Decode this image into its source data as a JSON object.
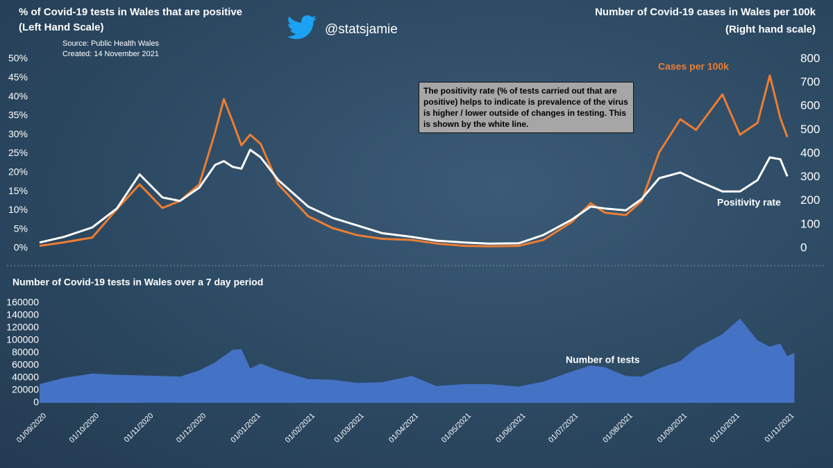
{
  "header": {
    "handle": "@statsjamie",
    "source": "Source: Public Health Wales",
    "created": "Created: 14 November 2021"
  },
  "chart_data": [
    {
      "type": "line",
      "title": "% of Covid-19 tests in Wales that are positive",
      "ylabel": "(Left Hand Scale)",
      "y2title": "Number of Covid-19 cases in Wales per 100k",
      "y2label": "(Right hand scale)",
      "annotation": "The positivity rate (% of tests carried out that are positive) helps to indicate is prevalence of the virus is higher / lower outside of changes in testing. This is shown by the white line.",
      "xlim": [
        "01/09/2020",
        "10/11/2021"
      ],
      "x": [
        "01/09/2020",
        "15/09/2020",
        "01/10/2020",
        "15/10/2020",
        "28/10/2020",
        "10/11/2020",
        "20/11/2020",
        "01/12/2020",
        "10/12/2020",
        "15/12/2020",
        "20/12/2020",
        "25/12/2020",
        "30/12/2020",
        "05/01/2021",
        "15/01/2021",
        "01/02/2021",
        "15/02/2021",
        "01/03/2021",
        "15/03/2021",
        "01/04/2021",
        "15/04/2021",
        "01/05/2021",
        "15/05/2021",
        "01/06/2021",
        "15/06/2021",
        "01/07/2021",
        "12/07/2021",
        "20/07/2021",
        "01/08/2021",
        "10/08/2021",
        "20/08/2021",
        "01/09/2021",
        "10/09/2021",
        "25/09/2021",
        "05/10/2021",
        "15/10/2021",
        "22/10/2021",
        "28/10/2021",
        "01/11/2021"
      ],
      "ylim": [
        0,
        50
      ],
      "yticks": [
        {
          "value": 0,
          "label": "0%"
        },
        {
          "value": 5,
          "label": "5%"
        },
        {
          "value": 10,
          "label": "10%"
        },
        {
          "value": 15,
          "label": "15%"
        },
        {
          "value": 20,
          "label": "20%"
        },
        {
          "value": 25,
          "label": "25%"
        },
        {
          "value": 30,
          "label": "30%"
        },
        {
          "value": 35,
          "label": "35%"
        },
        {
          "value": 40,
          "label": "40%"
        },
        {
          "value": 45,
          "label": "45%"
        },
        {
          "value": 50,
          "label": "50%"
        }
      ],
      "y2lim": [
        0,
        800
      ],
      "y2ticks": [
        0,
        100,
        200,
        300,
        400,
        500,
        600,
        700,
        800
      ],
      "series": [
        {
          "name": "Cases per 100k",
          "color": "#ed7d31",
          "axis": "y2",
          "values": [
            10,
            25,
            45,
            165,
            270,
            170,
            200,
            270,
            490,
            630,
            535,
            435,
            480,
            440,
            270,
            135,
            85,
            55,
            40,
            35,
            20,
            10,
            8,
            10,
            35,
            110,
            190,
            150,
            140,
            200,
            405,
            545,
            500,
            650,
            480,
            530,
            730,
            550,
            470
          ]
        },
        {
          "name": "Positivity rate",
          "color": "#ffffff",
          "values": [
            1.5,
            3,
            5.5,
            10.5,
            19.5,
            13.4,
            12.5,
            16,
            22,
            23,
            21.5,
            21,
            26,
            24,
            18,
            11,
            8,
            6,
            4,
            3,
            2,
            1.5,
            1.2,
            1.3,
            3.5,
            7.5,
            11,
            10.5,
            10,
            13,
            18.5,
            20,
            18,
            15,
            15,
            18,
            24,
            23.5,
            19
          ]
        }
      ]
    },
    {
      "type": "area",
      "title": "Number of Covid-19 tests in Wales over a 7 day period",
      "xlim": [
        "01/09/2020",
        "10/11/2021"
      ],
      "x": [
        "01/09/2020",
        "15/09/2020",
        "01/10/2020",
        "15/10/2020",
        "28/10/2020",
        "10/11/2020",
        "20/11/2020",
        "01/12/2020",
        "10/12/2020",
        "15/12/2020",
        "20/12/2020",
        "25/12/2020",
        "30/12/2020",
        "05/01/2021",
        "15/01/2021",
        "01/02/2021",
        "15/02/2021",
        "01/03/2021",
        "15/03/2021",
        "01/04/2021",
        "15/04/2021",
        "01/05/2021",
        "15/05/2021",
        "01/06/2021",
        "15/06/2021",
        "01/07/2021",
        "12/07/2021",
        "20/07/2021",
        "01/08/2021",
        "10/08/2021",
        "20/08/2021",
        "01/09/2021",
        "10/09/2021",
        "25/09/2021",
        "05/10/2021",
        "15/10/2021",
        "22/10/2021",
        "28/10/2021",
        "01/11/2021",
        "05/11/2021"
      ],
      "xticks": [
        "01/09/2020",
        "01/10/2020",
        "01/11/2020",
        "01/12/2020",
        "01/01/2021",
        "01/02/2021",
        "01/03/2021",
        "01/04/2021",
        "01/05/2021",
        "01/06/2021",
        "01/07/2021",
        "01/08/2021",
        "01/09/2021",
        "01/10/2021",
        "01/11/2021"
      ],
      "ylim": [
        0,
        160000
      ],
      "yticks": [
        0,
        20000,
        40000,
        60000,
        80000,
        100000,
        120000,
        140000,
        160000
      ],
      "series": [
        {
          "name": "Number of tests",
          "color": "#4472c4",
          "values": [
            30000,
            40000,
            47000,
            45000,
            44000,
            43000,
            42000,
            52000,
            65000,
            75000,
            85000,
            86000,
            55000,
            63000,
            52000,
            38000,
            37000,
            32000,
            33000,
            43000,
            27000,
            30000,
            30000,
            26000,
            34000,
            50000,
            60000,
            57000,
            43000,
            42000,
            55000,
            67000,
            88000,
            110000,
            135000,
            100000,
            90000,
            95000,
            75000,
            80000
          ]
        }
      ]
    }
  ]
}
